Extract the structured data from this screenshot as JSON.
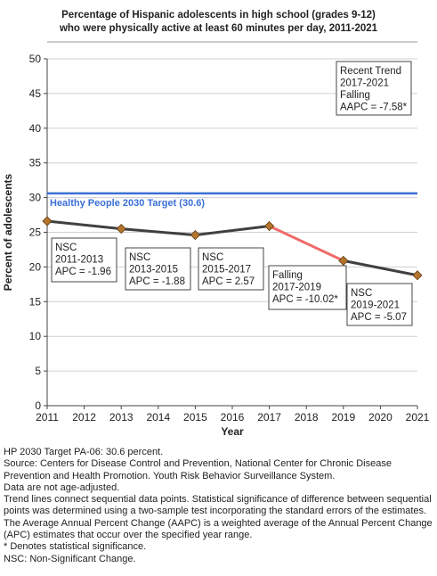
{
  "chart_data": {
    "type": "line",
    "title_lines": [
      "Percentage of Hispanic adolescents in high school (grades 9-12)",
      "who were physically active at least 60 minutes per day, 2011-2021"
    ],
    "xlabel": "Year",
    "ylabel": "Percent of adolescents",
    "xlim": [
      2011,
      2021
    ],
    "ylim": [
      0,
      50
    ],
    "x_ticks": [
      "2011",
      "2012",
      "2013",
      "2014",
      "2015",
      "2016",
      "2017",
      "2018",
      "2019",
      "2020",
      "2021"
    ],
    "y_ticks": [
      "0",
      "5",
      "10",
      "15",
      "20",
      "25",
      "30",
      "35",
      "40",
      "45",
      "50"
    ],
    "grid": "horizontal",
    "series": [
      {
        "x": [
          2011,
          2013,
          2015,
          2017,
          2019,
          2021
        ],
        "values": [
          26.6,
          25.5,
          24.6,
          25.9,
          20.9,
          18.8
        ]
      }
    ],
    "segment_colors": [
      "#404040",
      "#404040",
      "#404040",
      "#f06a6a",
      "#404040"
    ],
    "line_color": "#404040",
    "highlight_color": "#f06a6a",
    "marker_color": "#b5742c",
    "target": {
      "value": 30.6,
      "label": "Healthy People 2030 Target (30.6)",
      "color": "#3a6fd8"
    },
    "annotations": [
      {
        "lines": [
          "NSC",
          "2011-2013",
          "APC = -1.96"
        ]
      },
      {
        "lines": [
          "NSC",
          "2013-2015",
          "APC = -1.88"
        ]
      },
      {
        "lines": [
          "NSC",
          "2015-2017",
          "APC =  2.57"
        ]
      },
      {
        "lines": [
          "Falling",
          "2017-2019",
          "APC = -10.02*"
        ]
      },
      {
        "lines": [
          "NSC",
          "2019-2021",
          "APC = -5.07"
        ]
      }
    ],
    "trend_box": {
      "lines": [
        "Recent Trend",
        "2017-2021",
        "Falling",
        "AAPC = -7.58*"
      ]
    }
  },
  "footnotes": [
    "HP 2030 Target PA-06: 30.6 percent.",
    "Source: Centers for Disease Control and Prevention, National Center for Chronic Disease Prevention and Health Promotion. Youth Risk Behavior Surveillance System.",
    "Data are not age-adjusted.",
    "Trend lines connect sequential data points. Statistical significance of difference between sequential points was determined using a two-sample test incorporating the standard errors of the estimates.",
    "The Average Annual Percent Change (AAPC) is a weighted average of the Annual Percent Change (APC) estimates that occur over the specified year range.",
    "* Denotes statistical significance.",
    "NSC: Non-Significant Change."
  ]
}
